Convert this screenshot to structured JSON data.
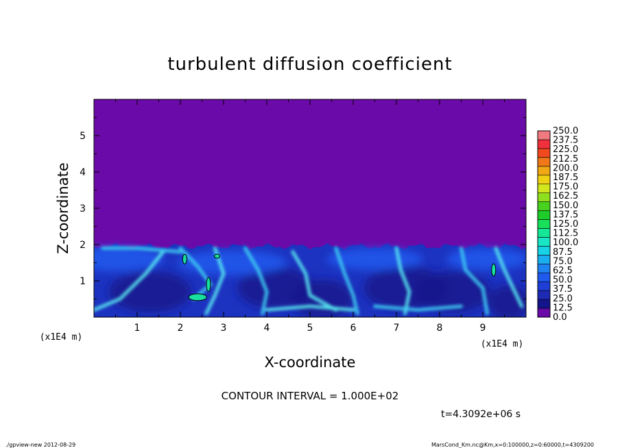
{
  "chart_data": {
    "type": "heatmap",
    "title": "turbulent diffusion coefficient",
    "xlabel": "X-coordinate",
    "ylabel": "Z-coordinate",
    "x_unit": "(x1E4 m)",
    "y_unit": "(x1E4 m)",
    "xlim": [
      0,
      10
    ],
    "ylim": [
      0,
      6
    ],
    "x_ticks": [
      "1",
      "2",
      "3",
      "4",
      "5",
      "6",
      "7",
      "8",
      "9"
    ],
    "y_ticks": [
      "1",
      "2",
      "3",
      "4",
      "5"
    ],
    "x_tick_values": [
      1,
      2,
      3,
      4,
      5,
      6,
      7,
      8,
      9
    ],
    "y_tick_values": [
      1,
      2,
      3,
      4,
      5
    ],
    "colorbar": {
      "levels": [
        "0.0",
        "12.5",
        "25.0",
        "37.5",
        "50.0",
        "62.5",
        "75.0",
        "87.5",
        "100.0",
        "112.5",
        "125.0",
        "137.5",
        "150.0",
        "162.5",
        "175.0",
        "187.5",
        "200.0",
        "212.5",
        "225.0",
        "237.5",
        "250.0"
      ],
      "colors": [
        "#6a0aa8",
        "#14148c",
        "#1e2ab4",
        "#1e3ed6",
        "#1e5aee",
        "#1e82f0",
        "#1aaef0",
        "#18d2e6",
        "#18e6c4",
        "#14e896",
        "#18e05a",
        "#1ecc2a",
        "#46d21e",
        "#8ee01e",
        "#d2e81e",
        "#f0d214",
        "#f0a814",
        "#f07818",
        "#f04a1e",
        "#f0303c",
        "#f07a80"
      ]
    },
    "boundary_layer_top_z": 1.95,
    "contour_interval_text": "CONTOUR INTERVAL = 1.000E+02",
    "time_text": "t=4.3092e+06 s",
    "footer_left": "./gpview-new  2012-08-29",
    "footer_right": "MarsCond_Km.nc@Km,x=0:100000,z=0:60000,t=4309200"
  }
}
